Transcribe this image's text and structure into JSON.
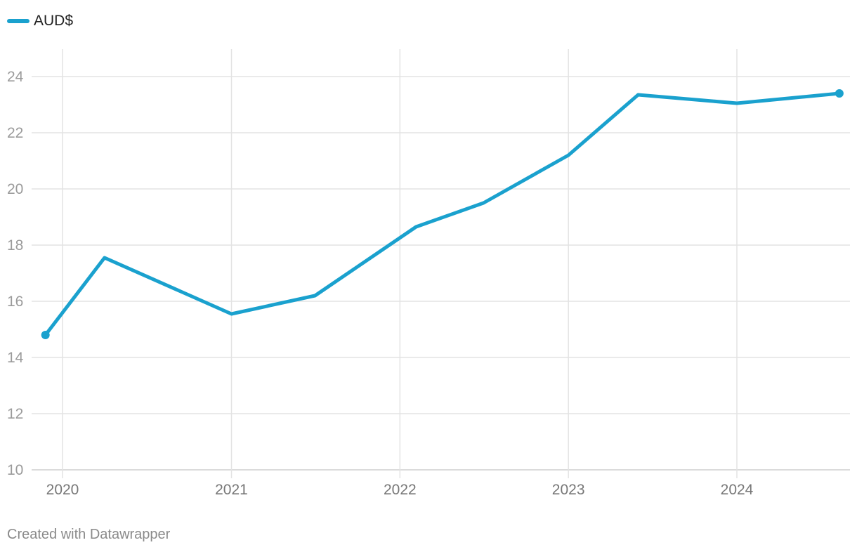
{
  "legend": {
    "label": "AUD$",
    "color": "#1aa1ce"
  },
  "footer": {
    "credit": "Created with Datawrapper"
  },
  "chart_data": {
    "type": "line",
    "title": "",
    "xlabel": "",
    "ylabel": "",
    "ylim": [
      10,
      25
    ],
    "xlim": [
      "2019-11-01",
      "2024-09-01"
    ],
    "y_ticks": [
      10,
      12,
      14,
      16,
      18,
      20,
      22,
      24
    ],
    "x_ticks": [
      "2020",
      "2021",
      "2022",
      "2023",
      "2024"
    ],
    "grid": true,
    "legend_position": "top-left",
    "series": [
      {
        "name": "AUD$",
        "color": "#1aa1ce",
        "points": [
          {
            "x": "2019-11-25",
            "y": 14.8
          },
          {
            "x": "2020-04-01",
            "y": 17.55
          },
          {
            "x": "2021-01-01",
            "y": 15.55
          },
          {
            "x": "2021-07-01",
            "y": 16.2
          },
          {
            "x": "2022-02-05",
            "y": 18.65
          },
          {
            "x": "2022-07-01",
            "y": 19.5
          },
          {
            "x": "2023-01-01",
            "y": 21.2
          },
          {
            "x": "2023-06-01",
            "y": 23.35
          },
          {
            "x": "2024-01-01",
            "y": 23.05
          },
          {
            "x": "2024-08-10",
            "y": 23.4
          }
        ]
      }
    ]
  }
}
